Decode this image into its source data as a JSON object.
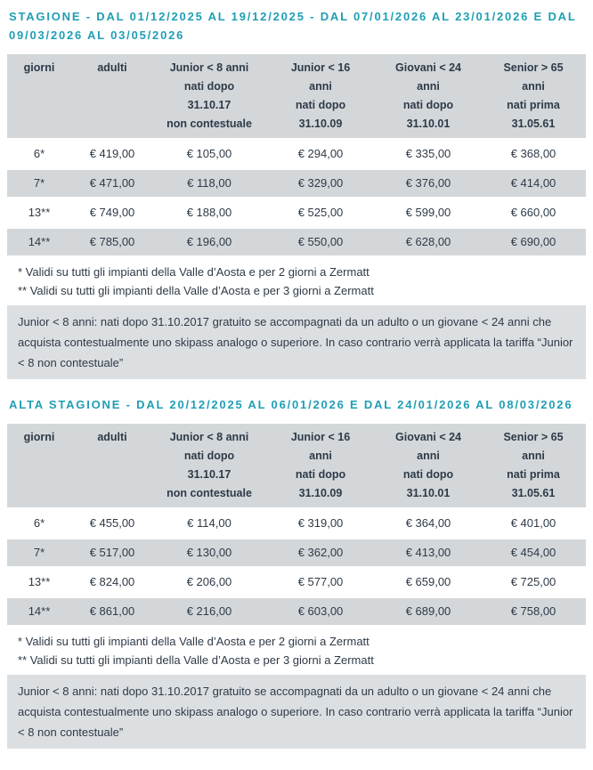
{
  "accent_color": "#1f9eb4",
  "text_color": "#2e3a47",
  "stripe_color": "#d3d7da",
  "notebox_color": "#dcdfe2",
  "sections": [
    {
      "title": "STAGIONE - DAL 01/12/2025 AL 19/12/2025 - DAL 07/01/2026 AL 23/01/2026 E DAL 09/03/2026 AL 03/05/2026",
      "table": {
        "headers": [
          [
            "giorni"
          ],
          [
            "adulti"
          ],
          [
            "Junior < 8 anni",
            "nati dopo",
            "31.10.17",
            "non contestuale"
          ],
          [
            "Junior < 16",
            "anni",
            "nati dopo",
            "31.10.09"
          ],
          [
            "Giovani < 24",
            "anni",
            "nati dopo",
            "31.10.01"
          ],
          [
            "Senior > 65",
            "anni",
            "nati prima",
            "31.05.61"
          ]
        ],
        "rows": [
          [
            "6*",
            "€ 419,00",
            "€ 105,00",
            "€ 294,00",
            "€ 335,00",
            "€ 368,00"
          ],
          [
            "7*",
            "€ 471,00",
            "€ 118,00",
            "€ 329,00",
            "€ 376,00",
            "€ 414,00"
          ],
          [
            "13**",
            "€ 749,00",
            "€ 188,00",
            "€ 525,00",
            "€ 599,00",
            "€ 660,00"
          ],
          [
            "14**",
            "€ 785,00",
            "€ 196,00",
            "€ 550,00",
            "€ 628,00",
            "€ 690,00"
          ]
        ]
      },
      "footnotes": [
        "* Validi su tutti gli impianti della Valle d’Aosta e per 2 giorni a Zermatt",
        "** Validi su tutti gli impianti della Valle d’Aosta e per 3 giorni a Zermatt"
      ],
      "note": "Junior < 8 anni: nati dopo 31.10.2017 gratuito se accompagnati da un adulto o un giovane < 24 anni che acquista contestualmente uno skipass analogo o superiore. In caso contrario verrà applicata la tariffa “Junior < 8 non contestuale”"
    },
    {
      "title": "ALTA STAGIONE - DAL 20/12/2025 AL 06/01/2026 E DAL 24/01/2026 AL 08/03/2026",
      "table": {
        "headers": [
          [
            "giorni"
          ],
          [
            "adulti"
          ],
          [
            "Junior < 8 anni",
            "nati dopo",
            "31.10.17",
            "non contestuale"
          ],
          [
            "Junior < 16",
            "anni",
            "nati dopo",
            "31.10.09"
          ],
          [
            "Giovani < 24",
            "anni",
            "nati dopo",
            "31.10.01"
          ],
          [
            "Senior > 65",
            "anni",
            "nati prima",
            "31.05.61"
          ]
        ],
        "rows": [
          [
            "6*",
            "€ 455,00",
            "€ 114,00",
            "€ 319,00",
            "€ 364,00",
            "€ 401,00"
          ],
          [
            "7*",
            "€ 517,00",
            "€ 130,00",
            "€ 362,00",
            "€ 413,00",
            "€ 454,00"
          ],
          [
            "13**",
            "€ 824,00",
            "€ 206,00",
            "€ 577,00",
            "€ 659,00",
            "€ 725,00"
          ],
          [
            "14**",
            "€ 861,00",
            "€ 216,00",
            "€ 603,00",
            "€ 689,00",
            "€ 758,00"
          ]
        ]
      },
      "footnotes": [
        "* Validi su tutti gli impianti della Valle d’Aosta e per 2 giorni a Zermatt",
        "** Validi su tutti gli impianti della Valle d’Aosta e per 3 giorni a Zermatt"
      ],
      "note": "Junior < 8 anni: nati dopo 31.10.2017 gratuito se accompagnati da un adulto o un giovane < 24 anni che acquista contestualmente uno skipass analogo o superiore. In caso contrario verrà applicata la tariffa “Junior < 8 non contestuale”"
    }
  ]
}
